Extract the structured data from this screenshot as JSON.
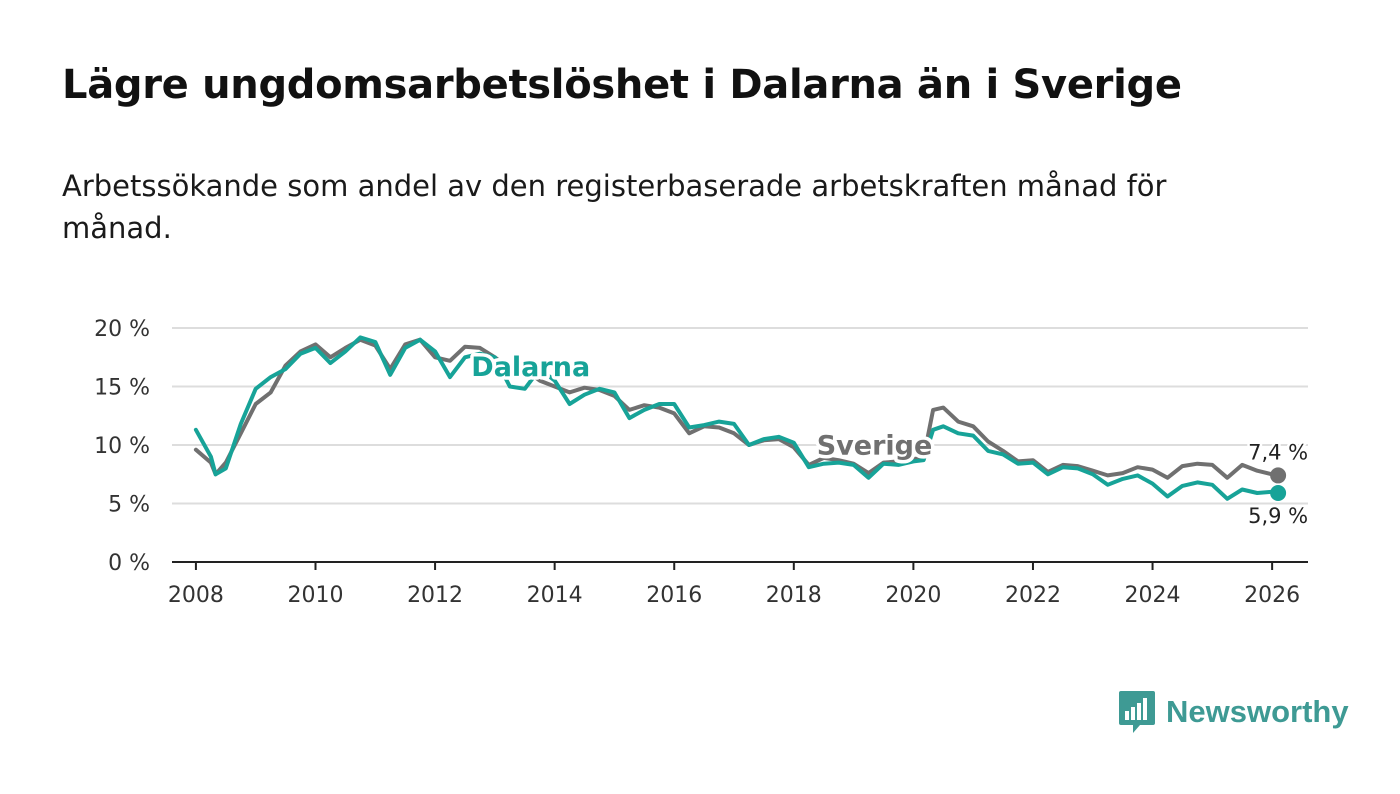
{
  "header": {
    "title": "Lägre ungdomsarbetslöshet i Dalarna än i Sverige",
    "subtitle": "Arbetssökande som andel av den registerbaserade arbetskraften månad för månad."
  },
  "brand": {
    "name": "Newsworthy",
    "icon": "newsworthy-bar-chart-icon",
    "color": "#3e9a94"
  },
  "colors": {
    "dalarna": "#17a398",
    "sverige": "#707070",
    "grid": "#dddddd",
    "axis": "#222222"
  },
  "chart_data": {
    "type": "line",
    "title": "Lägre ungdomsarbetslöshet i Dalarna än i Sverige",
    "xlabel": "",
    "ylabel": "",
    "xlim": [
      2007.6,
      2026.6
    ],
    "ylim": [
      0,
      20
    ],
    "y_ticks": [
      0,
      5,
      10,
      15,
      20
    ],
    "y_tick_labels": [
      "0 %",
      "5 %",
      "10 %",
      "15 %",
      "20 %"
    ],
    "x_ticks": [
      2008,
      2010,
      2012,
      2014,
      2016,
      2018,
      2020,
      2022,
      2024,
      2026
    ],
    "x_tick_labels": [
      "2008",
      "2010",
      "2012",
      "2014",
      "2016",
      "2018",
      "2020",
      "2022",
      "2024",
      "2026"
    ],
    "series": [
      {
        "name": "Sverige",
        "label": "Sverige",
        "color": "#707070",
        "end_label": "7,4 %",
        "x": [
          2008.0,
          2008.25,
          2008.33,
          2008.5,
          2008.75,
          2009.0,
          2009.25,
          2009.5,
          2009.75,
          2010.0,
          2010.25,
          2010.5,
          2010.75,
          2011.0,
          2011.25,
          2011.5,
          2011.75,
          2012.0,
          2012.25,
          2012.5,
          2012.75,
          2013.0,
          2013.25,
          2013.5,
          2013.75,
          2014.0,
          2014.25,
          2014.5,
          2014.75,
          2015.0,
          2015.25,
          2015.5,
          2015.75,
          2016.0,
          2016.25,
          2016.5,
          2016.75,
          2017.0,
          2017.25,
          2017.5,
          2017.75,
          2018.0,
          2018.25,
          2018.5,
          2018.75,
          2019.0,
          2019.25,
          2019.5,
          2019.75,
          2020.0,
          2020.17,
          2020.33,
          2020.5,
          2020.75,
          2021.0,
          2021.25,
          2021.5,
          2021.75,
          2022.0,
          2022.25,
          2022.5,
          2022.75,
          2023.0,
          2023.25,
          2023.5,
          2023.75,
          2024.0,
          2024.25,
          2024.5,
          2024.75,
          2025.0,
          2025.25,
          2025.5,
          2025.75,
          2026.0,
          2026.1
        ],
        "values": [
          9.6,
          8.5,
          7.5,
          8.5,
          11.0,
          13.5,
          14.5,
          16.8,
          18.0,
          18.6,
          17.5,
          18.3,
          19.0,
          18.5,
          16.5,
          18.6,
          19.0,
          17.5,
          17.2,
          18.4,
          18.3,
          17.5,
          16.5,
          16.5,
          15.5,
          15.0,
          14.5,
          14.9,
          14.7,
          14.2,
          13.0,
          13.4,
          13.2,
          12.7,
          11.0,
          11.6,
          11.5,
          11.0,
          10.0,
          10.4,
          10.5,
          9.8,
          8.3,
          8.9,
          8.7,
          8.4,
          7.6,
          8.5,
          8.6,
          8.8,
          8.9,
          13.0,
          13.2,
          12.0,
          11.6,
          10.3,
          9.5,
          8.6,
          8.7,
          7.7,
          8.3,
          8.2,
          7.8,
          7.4,
          7.6,
          8.1,
          7.9,
          7.2,
          8.2,
          8.4,
          8.3,
          7.2,
          8.3,
          7.8,
          7.5,
          7.4
        ]
      },
      {
        "name": "Dalarna",
        "label": "Dalarna",
        "color": "#17a398",
        "end_label": "5,9 %",
        "x": [
          2008.0,
          2008.25,
          2008.33,
          2008.5,
          2008.75,
          2009.0,
          2009.25,
          2009.5,
          2009.75,
          2010.0,
          2010.25,
          2010.5,
          2010.75,
          2011.0,
          2011.25,
          2011.5,
          2011.75,
          2012.0,
          2012.25,
          2012.5,
          2012.75,
          2013.0,
          2013.25,
          2013.5,
          2013.75,
          2014.0,
          2014.25,
          2014.5,
          2014.75,
          2015.0,
          2015.25,
          2015.5,
          2015.75,
          2016.0,
          2016.25,
          2016.5,
          2016.75,
          2017.0,
          2017.25,
          2017.5,
          2017.75,
          2018.0,
          2018.25,
          2018.5,
          2018.75,
          2019.0,
          2019.25,
          2019.5,
          2019.75,
          2020.0,
          2020.17,
          2020.33,
          2020.5,
          2020.75,
          2021.0,
          2021.25,
          2021.5,
          2021.75,
          2022.0,
          2022.25,
          2022.5,
          2022.75,
          2023.0,
          2023.25,
          2023.5,
          2023.75,
          2024.0,
          2024.25,
          2024.5,
          2024.75,
          2025.0,
          2025.25,
          2025.5,
          2025.75,
          2026.0,
          2026.1
        ],
        "values": [
          11.3,
          9.0,
          7.5,
          8.0,
          11.8,
          14.8,
          15.8,
          16.5,
          17.8,
          18.3,
          17.0,
          18.0,
          19.2,
          18.8,
          16.0,
          18.3,
          19.0,
          18.0,
          15.8,
          17.5,
          17.8,
          17.5,
          15.0,
          14.8,
          16.5,
          15.5,
          13.5,
          14.3,
          14.8,
          14.5,
          12.3,
          13.0,
          13.5,
          13.5,
          11.5,
          11.7,
          12.0,
          11.8,
          10.0,
          10.5,
          10.7,
          10.2,
          8.1,
          8.4,
          8.5,
          8.3,
          7.2,
          8.4,
          8.3,
          8.6,
          8.7,
          11.3,
          11.6,
          11.0,
          10.8,
          9.5,
          9.2,
          8.4,
          8.5,
          7.5,
          8.1,
          8.0,
          7.5,
          6.6,
          7.1,
          7.4,
          6.7,
          5.6,
          6.5,
          6.8,
          6.6,
          5.4,
          6.2,
          5.9,
          6.0,
          5.9
        ]
      }
    ]
  }
}
